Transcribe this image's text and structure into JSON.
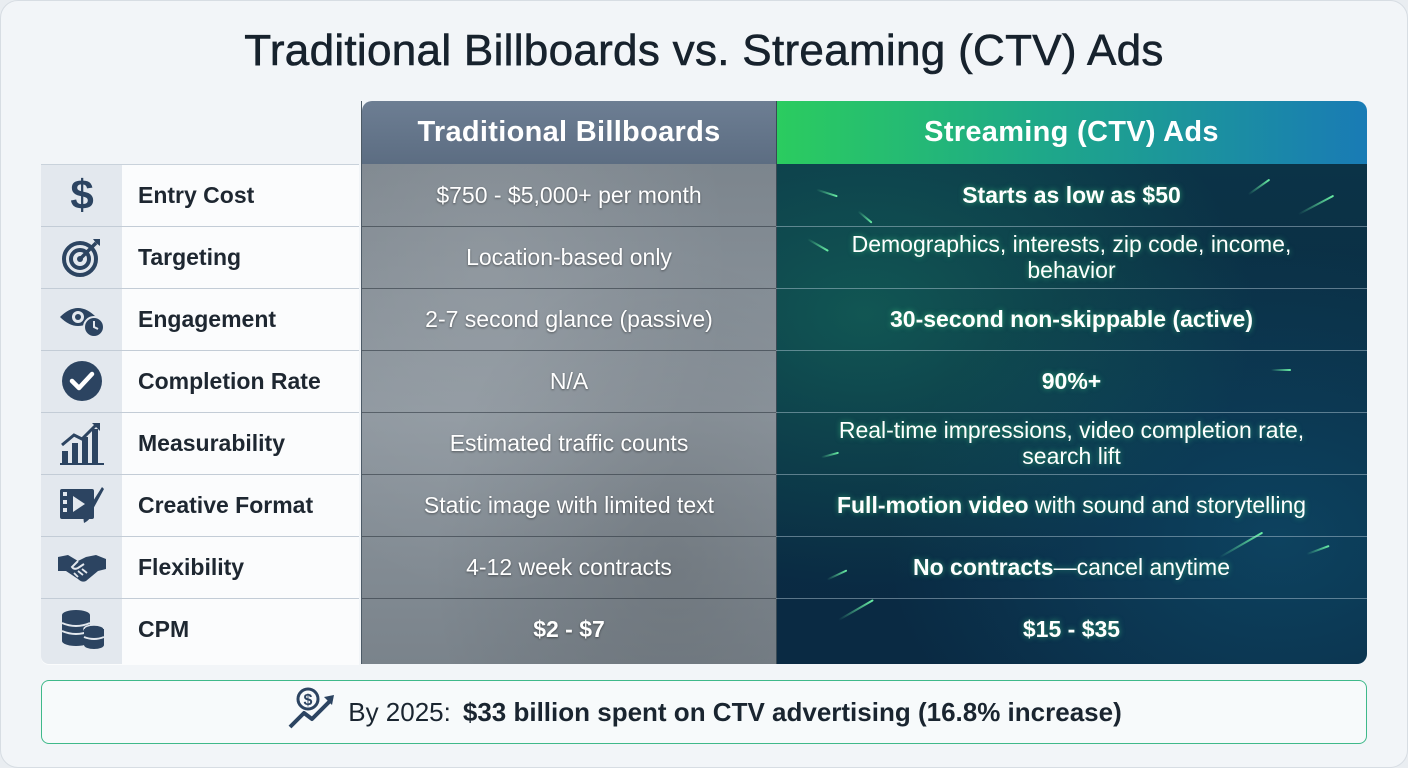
{
  "title": "Traditional Billboards vs. Streaming (CTV) Ads",
  "columns": {
    "traditional": "Traditional Billboards",
    "streaming": "Streaming (CTV) Ads"
  },
  "rows": [
    {
      "icon": "dollar-icon",
      "label": "Entry Cost",
      "traditional": "$750 - $5,000+ per month",
      "streaming": "Starts as low as $50"
    },
    {
      "icon": "target-icon",
      "label": "Targeting",
      "traditional": "Location-based only",
      "streaming": "Demographics, interests, zip code, income, behavior"
    },
    {
      "icon": "eye-clock-icon",
      "label": "Engagement",
      "traditional": "2-7 second glance (passive)",
      "streaming": "30-second non-skippable (active)"
    },
    {
      "icon": "checkmark-circle-icon",
      "label": "Completion Rate",
      "traditional": "N/A",
      "streaming": "90%+"
    },
    {
      "icon": "bar-chart-icon",
      "label": "Measurability",
      "traditional": "Estimated traffic counts",
      "streaming": "Real-time impressions, video completion rate, search lift"
    },
    {
      "icon": "video-brush-icon",
      "label": "Creative Format",
      "traditional": "Static image with limited text",
      "streaming_bold": "Full-motion video",
      "streaming_rest": " with sound and storytelling"
    },
    {
      "icon": "handshake-icon",
      "label": "Flexibility",
      "traditional": "4-12 week contracts",
      "streaming_bold": "No contracts",
      "streaming_rest": "—cancel anytime"
    },
    {
      "icon": "coins-icon",
      "label": "CPM",
      "traditional": "$2 - $7",
      "streaming": "$15 - $35"
    }
  ],
  "footer": {
    "icon": "money-growth-icon",
    "prefix": "By 2025:",
    "highlight": "$33 billion spent on CTV advertising (16.8% increase)"
  },
  "colors": {
    "ctv_gradient_start": "#2bcc5f",
    "ctv_gradient_end": "#197bb5",
    "traditional_header": "#65768b",
    "footer_border": "#3fb98a"
  }
}
